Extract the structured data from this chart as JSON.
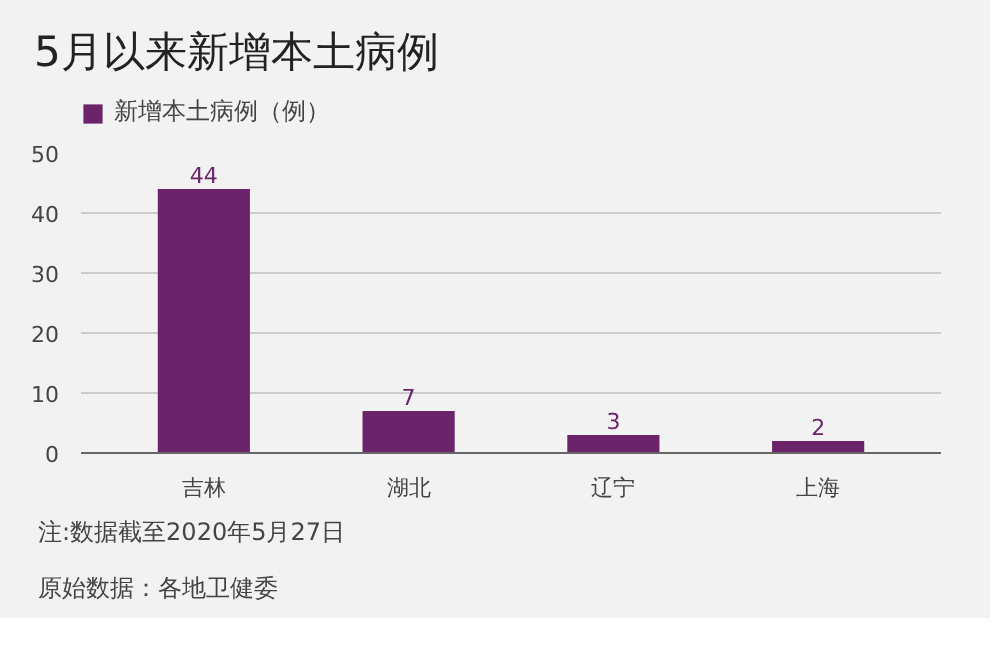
{
  "chart_data": {
    "type": "bar",
    "title": "5月以来新增本土病例",
    "categories": [
      "吉林",
      "湖北",
      "辽宁",
      "上海"
    ],
    "series": [
      {
        "name": "新增本土病例（例）",
        "color": "#6b2469",
        "values": [
          44,
          7,
          3,
          2
        ]
      }
    ],
    "ylim": [
      0,
      50
    ],
    "yticks": [
      0,
      10,
      20,
      30,
      40,
      50
    ],
    "grid": "y",
    "legend": "top left",
    "data_labels": true,
    "annotations": [
      "注:数据截至2020年5月27日",
      "原始数据：各地卫健委"
    ]
  }
}
